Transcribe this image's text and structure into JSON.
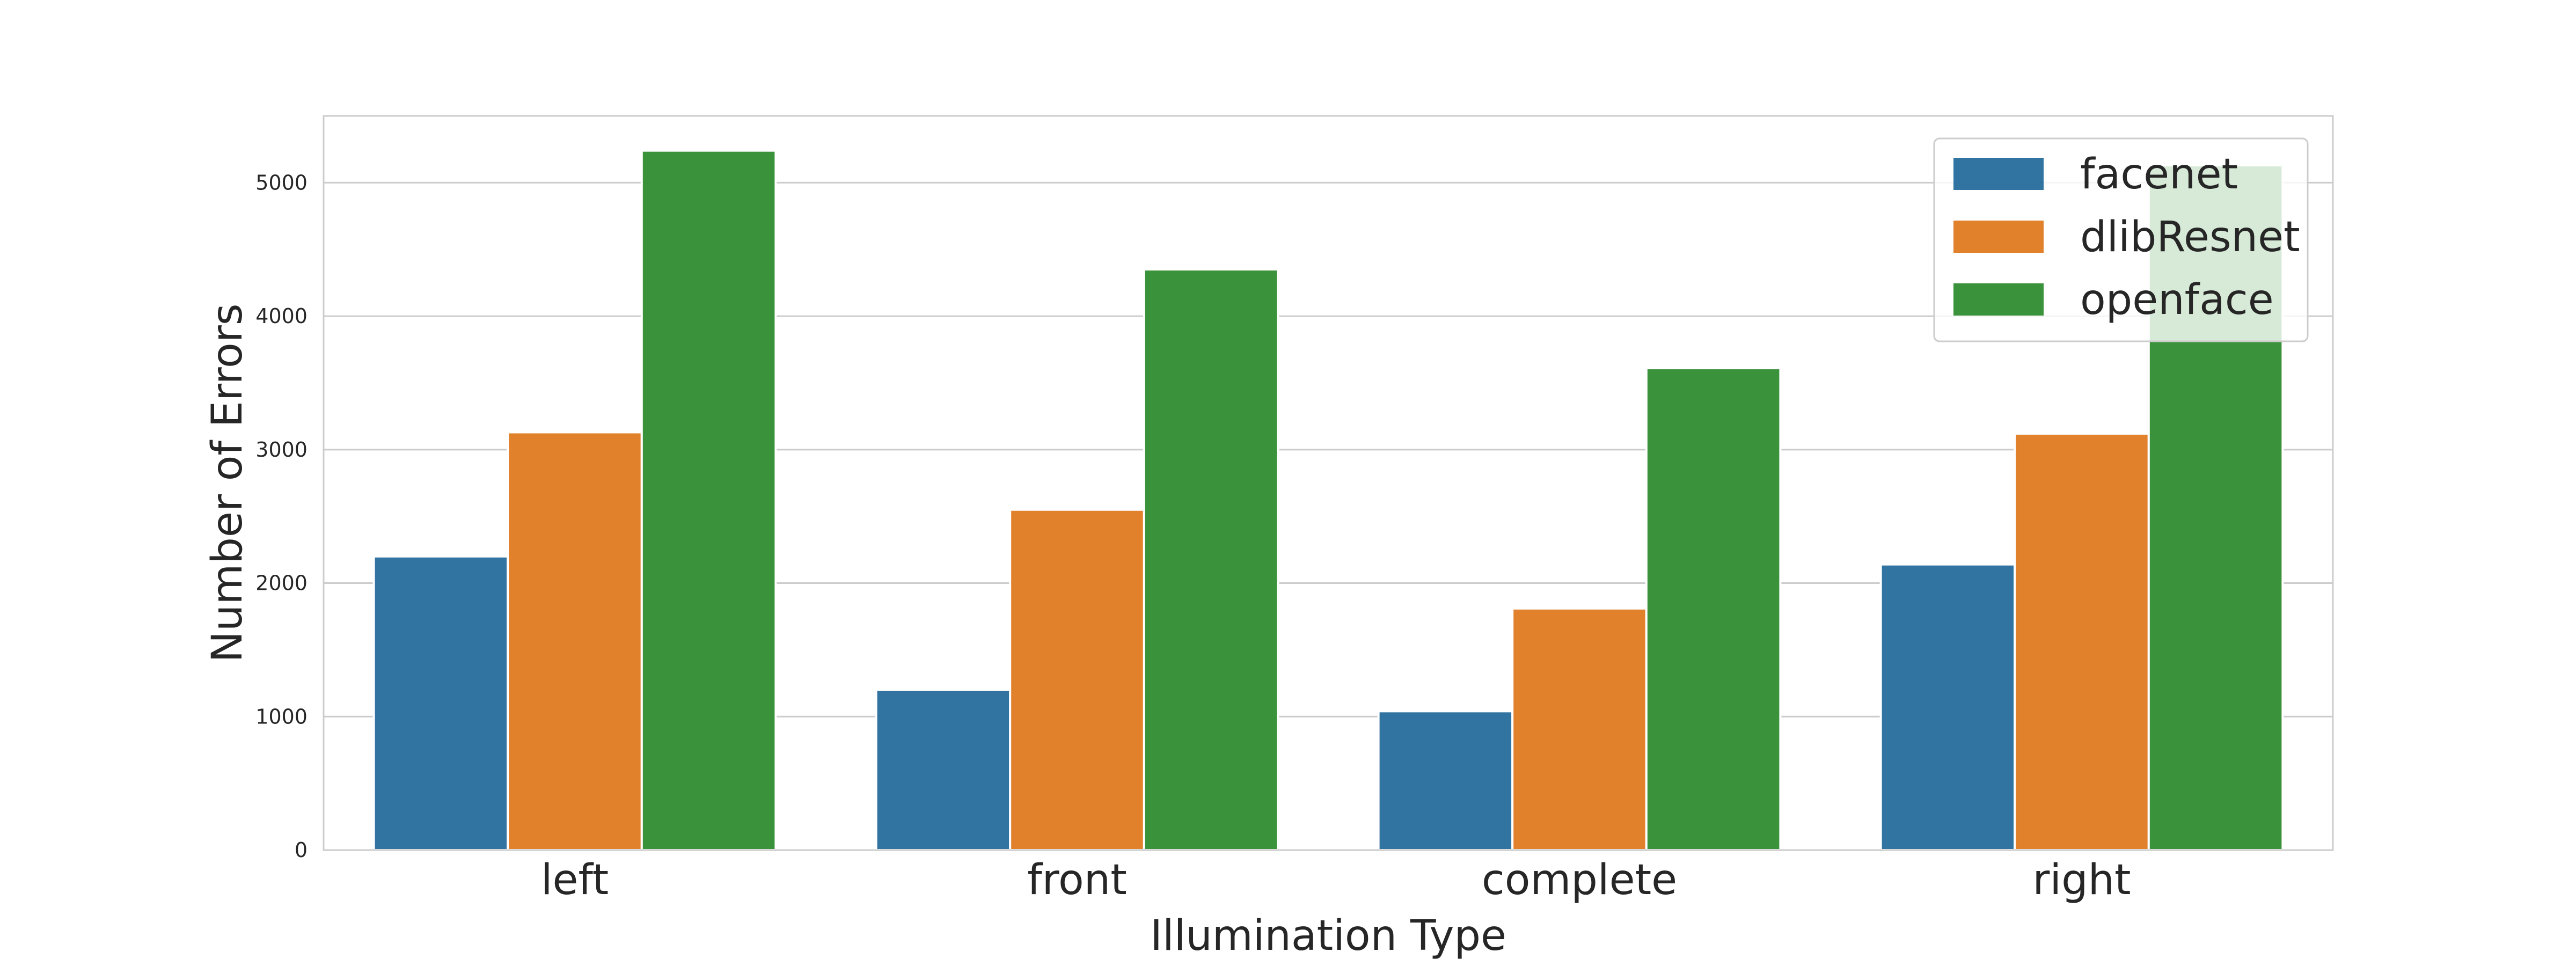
{
  "chart_data": {
    "type": "bar",
    "title": "",
    "xlabel": "Illumination Type",
    "ylabel": "Number of Errors",
    "categories": [
      "left",
      "front",
      "complete",
      "right"
    ],
    "series": [
      {
        "name": "facenet",
        "color": "#3274a1",
        "values": [
          2200,
          1200,
          1040,
          2140
        ]
      },
      {
        "name": "dlibResnet",
        "color": "#e1812c",
        "values": [
          3130,
          2550,
          1810,
          3120
        ]
      },
      {
        "name": "openface",
        "color": "#3a923a",
        "values": [
          5240,
          4350,
          3610,
          5130
        ]
      }
    ],
    "ylim": [
      0,
      5500
    ],
    "yticks": [
      0,
      1000,
      2000,
      3000,
      4000,
      5000
    ],
    "grid": "horizontal",
    "legend_position": "top-right"
  }
}
